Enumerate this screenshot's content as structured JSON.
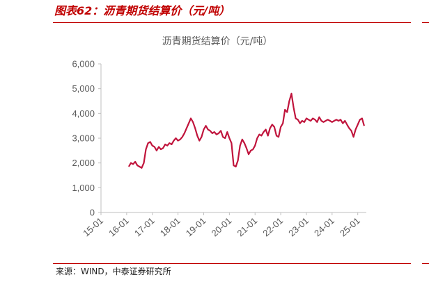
{
  "header": {
    "title": "图表62：沥青期货结算价（元/吨）"
  },
  "footer": {
    "source": "来源：WIND，中泰证券研究所"
  },
  "colors": {
    "accent": "#c00000",
    "series": "#c0143c",
    "axis": "#bfbfbf",
    "text": "#595959"
  },
  "chart_data": {
    "type": "line",
    "title": "沥青期货结算价（元/吨）",
    "xlabel": "",
    "ylabel": "",
    "ylim": [
      0,
      6000
    ],
    "yticks": [
      0,
      1000,
      2000,
      3000,
      4000,
      5000,
      6000
    ],
    "ytick_labels": [
      "0",
      "1,000",
      "2,000",
      "3,000",
      "4,000",
      "5,000",
      "6,000"
    ],
    "xticks": [
      "2015-01",
      "2016-01",
      "2017-01",
      "2018-01",
      "2019-01",
      "2020-01",
      "2021-01",
      "2022-01",
      "2023-01",
      "2024-01",
      "2025-01"
    ],
    "xtick_labels": [
      "15-01",
      "16-01",
      "17-01",
      "18-01",
      "19-01",
      "20-01",
      "21-01",
      "22-01",
      "23-01",
      "24-01",
      "25-01"
    ],
    "xlim": [
      "2015-01",
      "2025-05"
    ],
    "grid": false,
    "legend": "none",
    "series": [
      {
        "x": [
          "2016-02",
          "2016-03",
          "2016-04",
          "2016-05",
          "2016-06",
          "2016-07",
          "2016-08",
          "2016-09",
          "2016-10",
          "2016-11",
          "2016-12",
          "2017-01",
          "2017-02",
          "2017-03",
          "2017-04",
          "2017-05",
          "2017-06",
          "2017-07",
          "2017-08",
          "2017-09",
          "2017-10",
          "2017-11",
          "2017-12",
          "2018-01",
          "2018-02",
          "2018-03",
          "2018-04",
          "2018-05",
          "2018-06",
          "2018-07",
          "2018-08",
          "2018-09",
          "2018-10",
          "2018-11",
          "2018-12",
          "2019-01",
          "2019-02",
          "2019-03",
          "2019-04",
          "2019-05",
          "2019-06",
          "2019-07",
          "2019-08",
          "2019-09",
          "2019-10",
          "2019-11",
          "2019-12",
          "2020-01",
          "2020-02",
          "2020-03",
          "2020-04",
          "2020-05",
          "2020-06",
          "2020-07",
          "2020-08",
          "2020-09",
          "2020-10",
          "2020-11",
          "2020-12",
          "2021-01",
          "2021-02",
          "2021-03",
          "2021-04",
          "2021-05",
          "2021-06",
          "2021-07",
          "2021-08",
          "2021-09",
          "2021-10",
          "2021-11",
          "2021-12",
          "2022-01",
          "2022-02",
          "2022-03",
          "2022-04",
          "2022-05",
          "2022-06",
          "2022-07",
          "2022-08",
          "2022-09",
          "2022-10",
          "2022-11",
          "2022-12",
          "2023-01",
          "2023-02",
          "2023-03",
          "2023-04",
          "2023-05",
          "2023-06",
          "2023-07",
          "2023-08",
          "2023-09",
          "2023-10",
          "2023-11",
          "2023-12",
          "2024-01",
          "2024-02",
          "2024-03",
          "2024-04",
          "2024-05",
          "2024-06",
          "2024-07",
          "2024-08",
          "2024-09",
          "2024-10",
          "2024-11",
          "2024-12",
          "2025-01",
          "2025-02",
          "2025-03",
          "2025-04"
        ],
        "values": [
          1850,
          2000,
          1950,
          2050,
          1900,
          1850,
          1800,
          2000,
          2550,
          2800,
          2850,
          2700,
          2650,
          2500,
          2650,
          2550,
          2600,
          2750,
          2700,
          2800,
          2750,
          2900,
          3000,
          2900,
          2950,
          3050,
          3200,
          3400,
          3600,
          3800,
          3650,
          3400,
          3100,
          2900,
          3050,
          3350,
          3500,
          3350,
          3300,
          3200,
          3250,
          3150,
          3200,
          3300,
          3050,
          3000,
          3250,
          3000,
          2800,
          1900,
          1850,
          2100,
          2700,
          2950,
          2800,
          2600,
          2350,
          2500,
          2550,
          2700,
          3000,
          3150,
          3100,
          3250,
          3350,
          3100,
          3400,
          3550,
          3450,
          3100,
          3050,
          3450,
          3600,
          4150,
          4050,
          4500,
          4800,
          4250,
          3800,
          3750,
          3600,
          3700,
          3650,
          3800,
          3750,
          3700,
          3800,
          3750,
          3650,
          3850,
          3700,
          3650,
          3700,
          3750,
          3700,
          3650,
          3700,
          3750,
          3700,
          3750,
          3600,
          3700,
          3550,
          3400,
          3300,
          3050,
          3350,
          3550,
          3750,
          3800,
          3500
        ]
      }
    ]
  }
}
